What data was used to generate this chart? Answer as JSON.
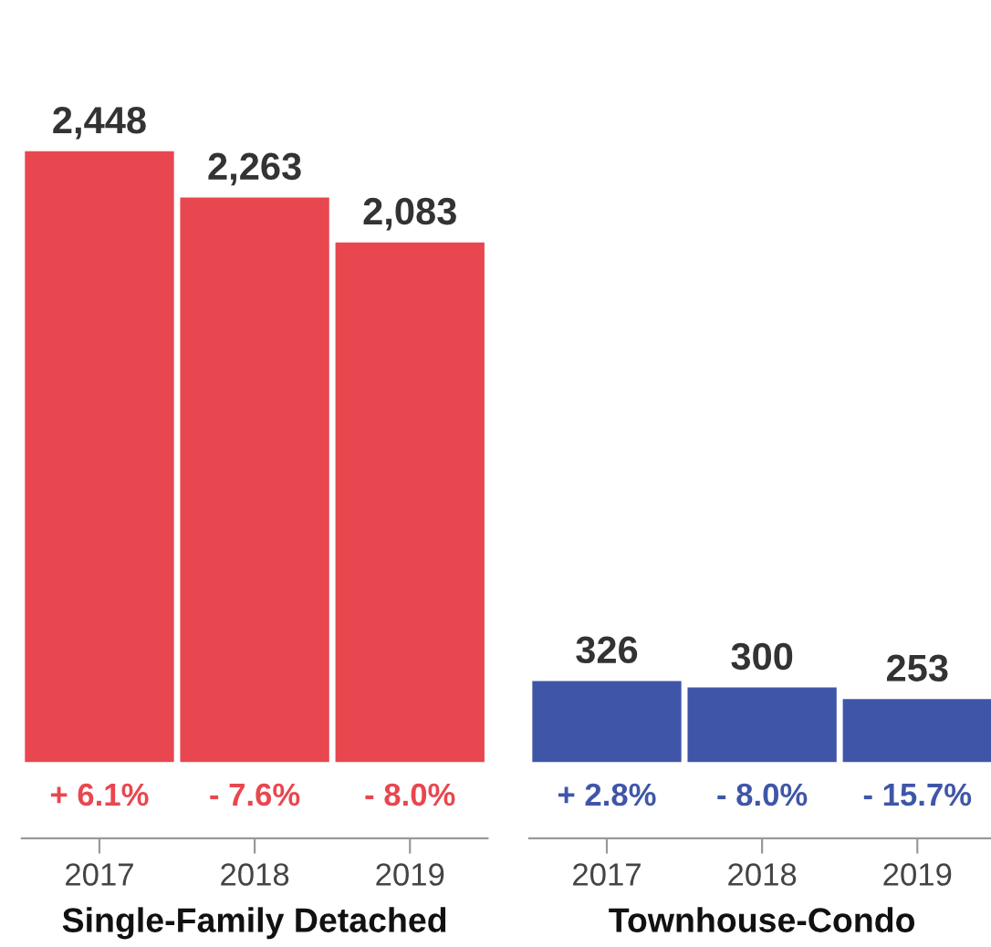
{
  "chart_data": [
    {
      "type": "bar",
      "xlabel": "Single-Family Detached",
      "categories": [
        "2017",
        "2018",
        "2019"
      ],
      "values": [
        2448,
        2263,
        2083
      ],
      "value_labels": [
        "2,448",
        "2,263",
        "2,083"
      ],
      "color": "#e8474f",
      "annotations": [
        "+ 6.1%",
        "- 7.6%",
        "- 8.0%"
      ],
      "grid": false
    },
    {
      "type": "bar",
      "xlabel": "Townhouse-Condo",
      "categories": [
        "2017",
        "2018",
        "2019"
      ],
      "values": [
        326,
        300,
        253
      ],
      "value_labels": [
        "326",
        "300",
        "253"
      ],
      "color": "#3f56a8",
      "annotations": [
        "+ 2.8%",
        "- 8.0%",
        "- 15.7%"
      ],
      "grid": false
    }
  ]
}
